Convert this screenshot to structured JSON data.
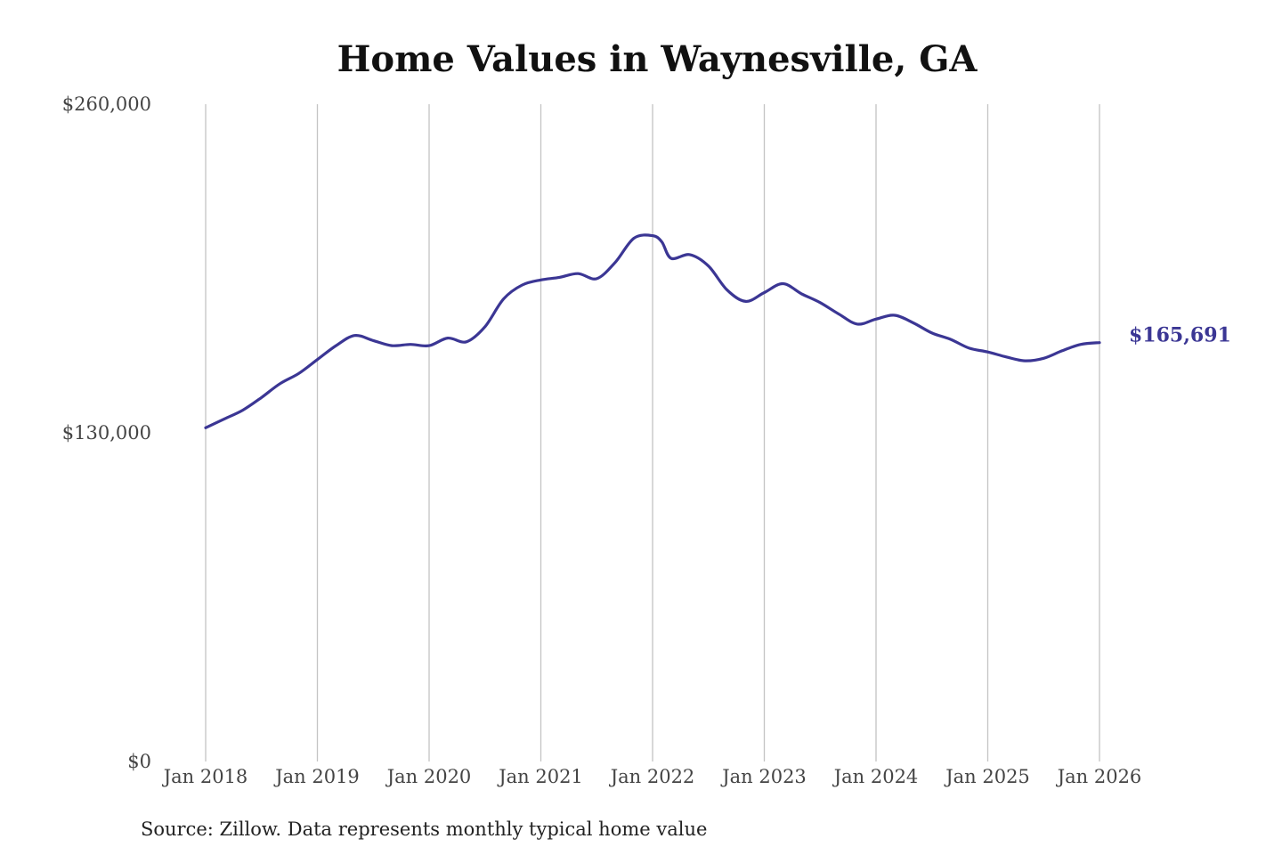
{
  "chart_data": {
    "type": "line",
    "title": "Home Values in Waynesville, GA",
    "xlabel": "",
    "ylabel": "",
    "source": "Source: Zillow. Data represents monthly typical home value",
    "ylim": [
      0,
      260000
    ],
    "yticks": [
      {
        "value": 0,
        "label": "$0"
      },
      {
        "value": 130000,
        "label": "$130,000"
      },
      {
        "value": 260000,
        "label": "$260,000"
      }
    ],
    "xticks": [
      {
        "value": 2018,
        "label": "Jan 2018"
      },
      {
        "value": 2019,
        "label": "Jan 2019"
      },
      {
        "value": 2020,
        "label": "Jan 2020"
      },
      {
        "value": 2021,
        "label": "Jan 2021"
      },
      {
        "value": 2022,
        "label": "Jan 2022"
      },
      {
        "value": 2023,
        "label": "Jan 2023"
      },
      {
        "value": 2024,
        "label": "Jan 2024"
      },
      {
        "value": 2025,
        "label": "Jan 2025"
      },
      {
        "value": 2026,
        "label": "Jan 2026"
      }
    ],
    "grid": {
      "vertical": true,
      "horizontal": false
    },
    "line_color": "#3b3694",
    "end_label": "$165,691",
    "series": [
      {
        "x": [
          "2018-01",
          "2018-03",
          "2018-05",
          "2018-07",
          "2018-09",
          "2018-11",
          "2019-01",
          "2019-03",
          "2019-05",
          "2019-07",
          "2019-09",
          "2019-11",
          "2020-01",
          "2020-03",
          "2020-05",
          "2020-07",
          "2020-09",
          "2020-11",
          "2021-01",
          "2021-03",
          "2021-05",
          "2021-07",
          "2021-09",
          "2021-11",
          "2022-01",
          "2022-02",
          "2022-03",
          "2022-05",
          "2022-07",
          "2022-09",
          "2022-11",
          "2023-01",
          "2023-03",
          "2023-05",
          "2023-07",
          "2023-09",
          "2023-11",
          "2024-01",
          "2024-03",
          "2024-05",
          "2024-07",
          "2024-09",
          "2024-11",
          "2025-01",
          "2025-03",
          "2025-05",
          "2025-07",
          "2025-09",
          "2025-11",
          "2026-01"
        ],
        "values": [
          132000,
          135500,
          139000,
          144000,
          149500,
          153500,
          159000,
          164500,
          168500,
          166500,
          164500,
          165000,
          164500,
          167500,
          166000,
          172000,
          183000,
          188500,
          190500,
          191500,
          193000,
          191000,
          197500,
          207000,
          208000,
          205500,
          199000,
          200500,
          196000,
          186500,
          182000,
          185500,
          189000,
          185000,
          181500,
          177000,
          173000,
          175000,
          176500,
          173500,
          169500,
          167000,
          163500,
          162000,
          160000,
          158500,
          159500,
          162500,
          165000,
          165691
        ]
      }
    ]
  }
}
